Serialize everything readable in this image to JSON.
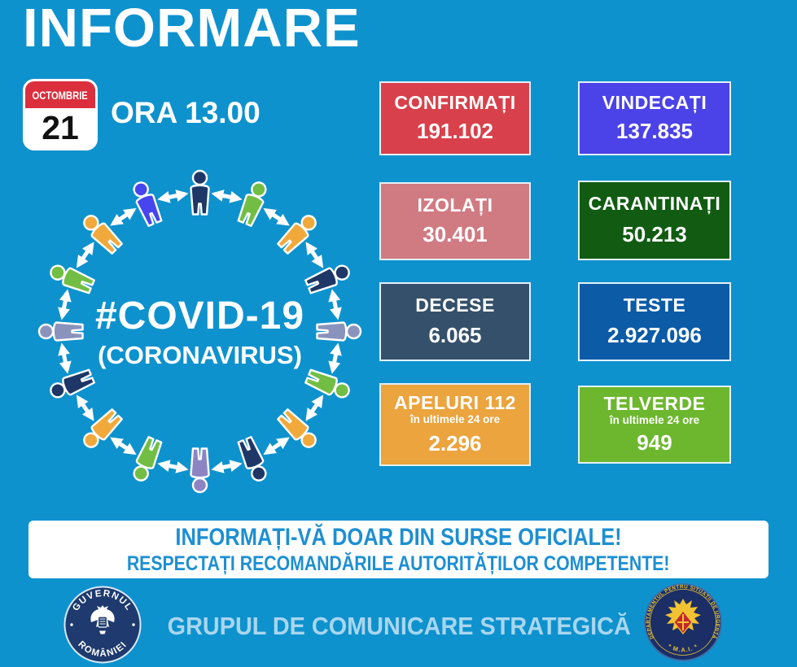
{
  "page": {
    "bg": "#0E92CE"
  },
  "header": {
    "title": "INFORMARE",
    "time_label": "ORA 13.00"
  },
  "calendar": {
    "month": "OCTOMBRIE",
    "day": "21"
  },
  "illustration": {
    "line1": "#COVID-19",
    "line2": "(CORONAVIRUS)",
    "arrow_color": "#FFFFFF",
    "person_colors": [
      "#1E3766",
      "#72BE44",
      "#F2A93B",
      "#1E3766",
      "#8A93BC",
      "#72BE44",
      "#F2A93B",
      "#1E3766",
      "#8D85C3",
      "#72BE44",
      "#F2A93B",
      "#1E3766",
      "#8A93BC",
      "#72BE44",
      "#F2A93B",
      "#4745EE"
    ]
  },
  "stats": [
    {
      "label": "CONFIRMAȚI",
      "value": "191.102",
      "bg": "#D8414B"
    },
    {
      "label": "VINDECAȚI",
      "value": "137.835",
      "bg": "#4B42E8"
    },
    {
      "label": "IZOLAȚI",
      "value": "30.401",
      "bg": "#D07B82"
    },
    {
      "label": "CARANTINAȚI",
      "value": "50.213",
      "bg": "#115C12"
    },
    {
      "label": "DECESE",
      "value": "6.065",
      "bg": "#35506A"
    },
    {
      "label": "TESTE",
      "value": "2.927.096",
      "bg": "#0B5BA7"
    },
    {
      "label": "APELURI 112",
      "sub": "în ultimele 24 ore",
      "value": "2.296",
      "bg": "#EBA43E"
    },
    {
      "label": "TELVERDE",
      "sub": "în ultimele 24 ore",
      "value": "949",
      "bg": "#6DB72E"
    }
  ],
  "banner": {
    "line1": "INFORMAȚI-VĂ DOAR DIN SURSE OFICIALE!",
    "line2": "RESPECTAȚI RECOMANDĂRILE AUTORITĂȚILOR COMPETENTE!",
    "text_color": "#1D8FD2"
  },
  "footer": {
    "center_text": "GRUPUL DE COMUNICARE STRATEGICĂ",
    "center_color": "#A9D6EE",
    "left_logo": {
      "top_text": "GUVERNUL",
      "bottom_text": "ROMÂNIEI"
    },
    "right_logo": {
      "ring_text": "DEPARTAMENTUL PENTRU SITUAȚII DE URGENȚĂ",
      "bottom_text": "* M.A.I. *"
    }
  }
}
